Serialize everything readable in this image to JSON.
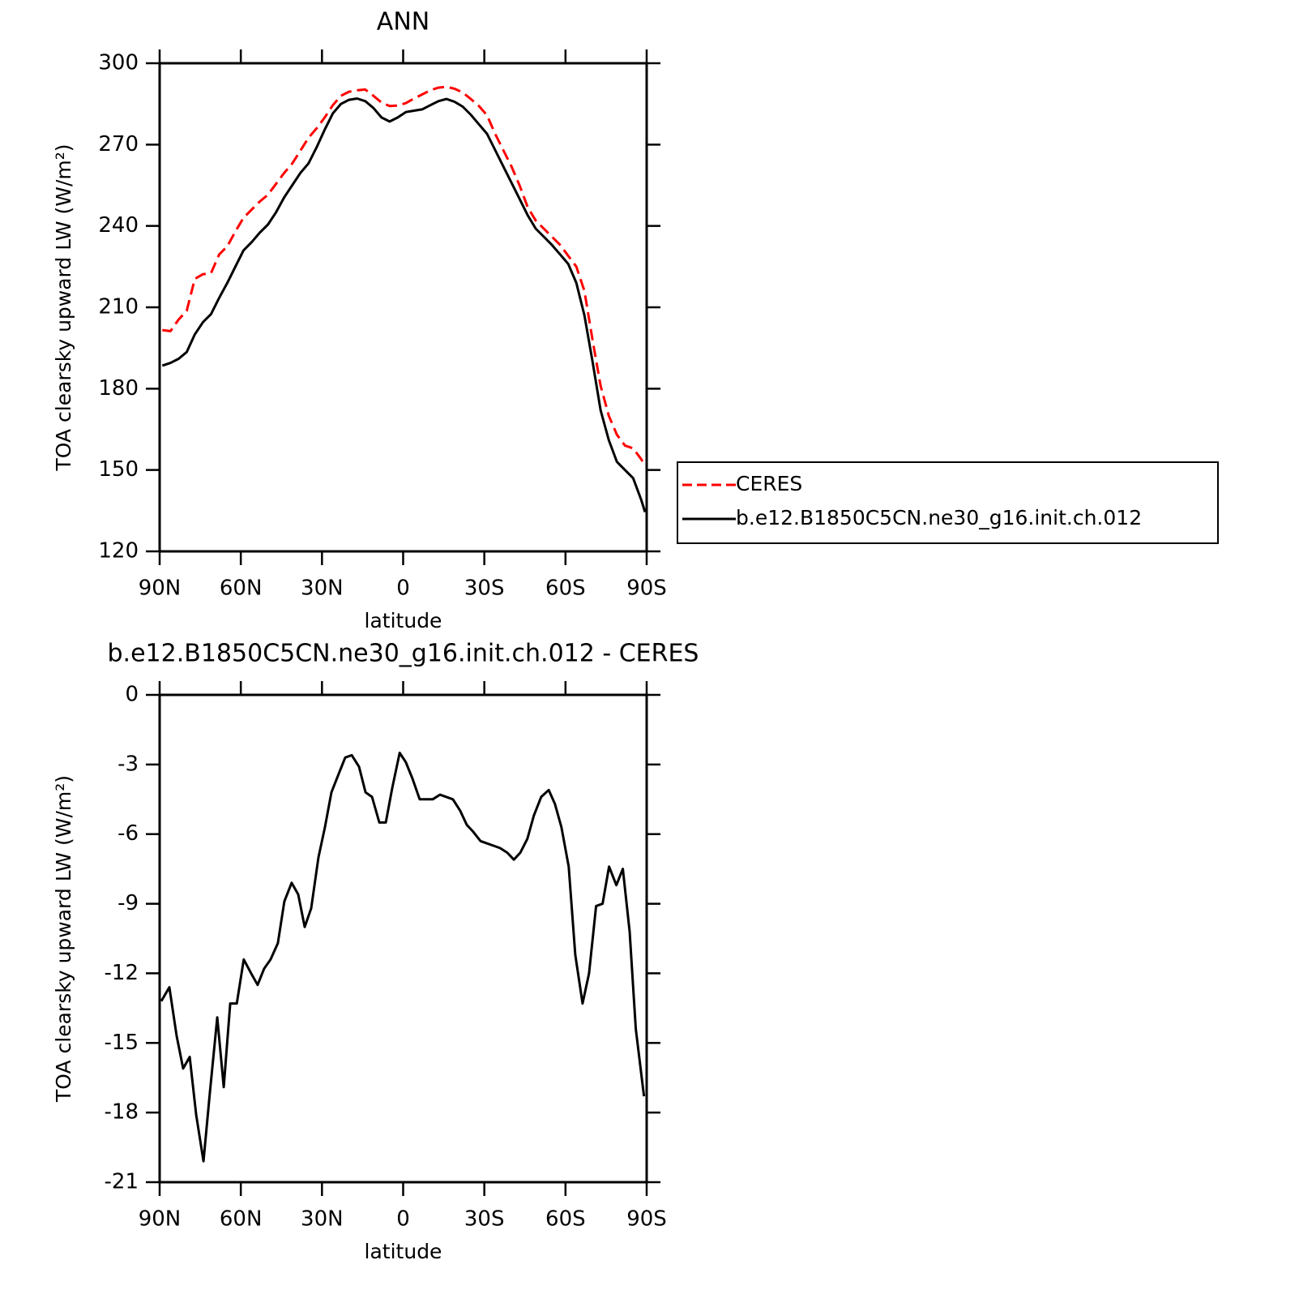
{
  "chart_data": [
    {
      "type": "line",
      "title": "ANN",
      "xlabel": "latitude",
      "ylabel": "TOA clearsky upward LW (W/m²)",
      "x": [
        89,
        86,
        83,
        80,
        77,
        74,
        71,
        68,
        65,
        62,
        59,
        56,
        53,
        50,
        47,
        44,
        41,
        38,
        35,
        32,
        29,
        26,
        23,
        20,
        17,
        14,
        11,
        8,
        5,
        2,
        -1,
        -4,
        -7,
        -10,
        -13,
        -16,
        -19,
        -22,
        -25,
        -28,
        -31,
        -34,
        -37,
        -40,
        -43,
        -46,
        -49,
        -52,
        -55,
        -58,
        -61,
        -64,
        -67,
        -70,
        -73,
        -76,
        -79,
        -82,
        -85,
        -88,
        -89.4
      ],
      "series": [
        {
          "name": "CERES",
          "color": "#ff0000",
          "line_style": "dashed",
          "values": [
            201.6,
            201.2,
            205.5,
            208.7,
            220.5,
            222.2,
            222.6,
            229.5,
            232.5,
            238,
            243,
            246,
            249,
            251.5,
            255.5,
            259.5,
            263,
            267.7,
            272.5,
            276,
            280,
            284.5,
            288,
            289.5,
            290,
            290.3,
            288,
            285.5,
            284.2,
            284.4,
            285.3,
            287,
            288.5,
            290,
            291,
            291.3,
            290.6,
            289.2,
            286.8,
            284.2,
            280.8,
            274,
            268,
            262,
            255,
            247,
            242,
            239,
            236,
            233,
            229,
            225,
            216,
            198,
            181,
            170,
            163,
            159,
            158,
            154,
            151.4
          ]
        },
        {
          "name": "b.e12.B1850C5CN.ne30_g16.init.ch.012",
          "color": "#000000",
          "line_style": "solid",
          "values": [
            188.5,
            189.5,
            191,
            193.5,
            200,
            204.5,
            207.5,
            213.5,
            219,
            225,
            231,
            234,
            237.5,
            240.5,
            245,
            250.5,
            255,
            259.5,
            263,
            269,
            275.5,
            281.5,
            285,
            286.5,
            287,
            286,
            283.5,
            280,
            278.5,
            280,
            282,
            282.5,
            283,
            284.5,
            286,
            286.8,
            285.8,
            284,
            281,
            277.5,
            274,
            268,
            262,
            256,
            250,
            244,
            239,
            236,
            233,
            229.5,
            226,
            219,
            207,
            190,
            172,
            161,
            153,
            150,
            147,
            139,
            134.5
          ]
        }
      ],
      "xlim": [
        90,
        -90
      ],
      "xticks": [
        {
          "value": 90,
          "label": "90N"
        },
        {
          "value": 60,
          "label": "60N"
        },
        {
          "value": 30,
          "label": "30N"
        },
        0,
        {
          "value": -30,
          "label": "30S"
        },
        {
          "value": -60,
          "label": "60S"
        },
        {
          "value": -90,
          "label": "90S"
        }
      ],
      "ylim": [
        120,
        300
      ],
      "yticks": [
        120,
        150,
        180,
        210,
        240,
        270,
        300
      ],
      "legend": "right"
    },
    {
      "type": "line",
      "title": "b.e12.B1850C5CN.ne30_g16.init.ch.012 - CERES",
      "xlabel": "latitude",
      "ylabel": "TOA clearsky upward LW (W/m²)",
      "x": [
        89.4,
        86.4,
        83.7,
        81.3,
        78.9,
        76.5,
        73.8,
        71.4,
        68.7,
        66.3,
        63.9,
        61.5,
        58.9,
        56.2,
        53.8,
        51.4,
        49,
        46.3,
        43.9,
        41.2,
        38.8,
        36.4,
        34,
        31.3,
        28.9,
        26.5,
        23.8,
        21.4,
        19,
        16.3,
        13.9,
        11.5,
        8.8,
        6.4,
        4,
        1.3,
        -1,
        -3.4,
        -6.1,
        -8.5,
        -10.9,
        -13.6,
        -16,
        -18.4,
        -21.1,
        -23.5,
        -25.9,
        -28.6,
        -31,
        -33.4,
        -35.8,
        -38.5,
        -40.9,
        -43.3,
        -45.9,
        -48.3,
        -51,
        -53.8,
        -56.1,
        -58.5,
        -61.2,
        -63.6,
        -66.3,
        -68.7,
        -71.3,
        -73.7,
        -76.1,
        -78.8,
        -81.2,
        -83.7,
        -86,
        -89
      ],
      "values": [
        -13.2,
        -12.6,
        -14.7,
        -16.1,
        -15.6,
        -18.1,
        -20.1,
        -17.1,
        -13.9,
        -16.9,
        -13.3,
        -13.3,
        -11.4,
        -12,
        -12.5,
        -11.8,
        -11.4,
        -10.7,
        -8.9,
        -8.1,
        -8.6,
        -10,
        -9.2,
        -7,
        -5.7,
        -4.2,
        -3.4,
        -2.7,
        -2.6,
        -3.1,
        -4.2,
        -4.4,
        -5.5,
        -5.5,
        -4,
        -2.5,
        -2.9,
        -3.6,
        -4.5,
        -4.5,
        -4.5,
        -4.3,
        -4.4,
        -4.5,
        -5,
        -5.6,
        -5.9,
        -6.3,
        -6.4,
        -6.5,
        -6.6,
        -6.8,
        -7.1,
        -6.8,
        -6.2,
        -5.2,
        -4.4,
        -4.1,
        -4.7,
        -5.7,
        -7.4,
        -11.2,
        -13.3,
        -12,
        -9.1,
        -9,
        -7.4,
        -8.2,
        -7.5,
        -10.2,
        -14.4,
        -17.3
      ],
      "color": "#000000",
      "xlim": [
        90,
        -90
      ],
      "xticks": [
        {
          "value": 90,
          "label": "90N"
        },
        {
          "value": 60,
          "label": "60N"
        },
        {
          "value": 30,
          "label": "30N"
        },
        0,
        {
          "value": -30,
          "label": "30S"
        },
        {
          "value": -60,
          "label": "60S"
        },
        {
          "value": -90,
          "label": "90S"
        }
      ],
      "ylim": [
        -21,
        0
      ],
      "yticks": [
        -21,
        -18,
        -15,
        -12,
        -9,
        -6,
        -3,
        0
      ]
    }
  ]
}
